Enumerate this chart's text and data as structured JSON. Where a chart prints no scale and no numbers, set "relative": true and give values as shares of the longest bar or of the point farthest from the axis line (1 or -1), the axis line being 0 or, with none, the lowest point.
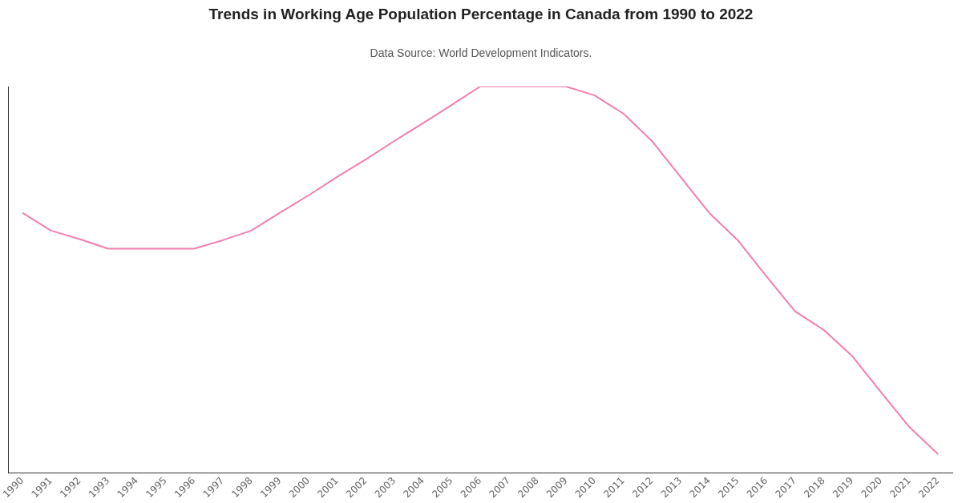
{
  "chart_data": {
    "type": "line",
    "title": "Trends in Working Age Population Percentage in Canada from 1990 to 2022",
    "annotations": [
      "Data Source: World Development Indicators."
    ],
    "relative": true,
    "categories": [
      "1990",
      "1991",
      "1992",
      "1993",
      "1994",
      "1995",
      "1996",
      "1997",
      "1998",
      "1999",
      "2000",
      "2001",
      "2002",
      "2003",
      "2004",
      "2005",
      "2006",
      "2007",
      "2008",
      "2009",
      "2010",
      "2011",
      "2012",
      "2013",
      "2014",
      "2015",
      "2016",
      "2017",
      "2018",
      "2019",
      "2020",
      "2021",
      "2022"
    ],
    "series": [
      {
        "color": "#f07fb0",
        "values": [
          0.673,
          0.627,
          0.605,
          0.58,
          0.58,
          0.58,
          0.58,
          0.602,
          0.627,
          0.673,
          0.718,
          0.766,
          0.811,
          0.859,
          0.905,
          0.952,
          1,
          1,
          1,
          1,
          0.977,
          0.93,
          0.859,
          0.766,
          0.673,
          0.602,
          0.509,
          0.418,
          0.37,
          0.302,
          0.209,
          0.118,
          0.048
        ]
      }
    ],
    "grid": false,
    "legend": false,
    "marker": "none",
    "line_style": "solid"
  }
}
